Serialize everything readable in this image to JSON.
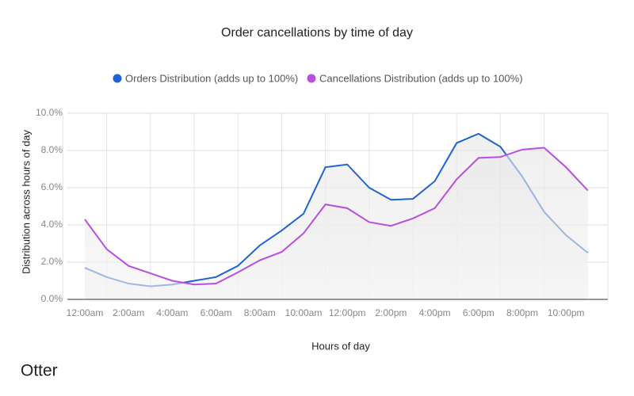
{
  "chart_data": {
    "type": "line",
    "title": "Order cancellations by time of day",
    "x_label": "Hours of day",
    "y_label": "Distribution across hours of day",
    "brand": "Otter",
    "categories": [
      "12:00am",
      null,
      "2:00am",
      null,
      "4:00am",
      null,
      "6:00am",
      null,
      "8:00am",
      null,
      "10:00am",
      null,
      "12:00pm",
      null,
      "2:00pm",
      null,
      "4:00pm",
      null,
      "6:00pm",
      null,
      "8:00pm",
      null,
      "10:00pm",
      null
    ],
    "series": [
      {
        "name": "Orders Distribution (adds up to 100%)",
        "color": "#1f63d1",
        "values": [
          1.7,
          1.2,
          0.85,
          0.7,
          0.8,
          1.0,
          1.2,
          1.8,
          2.9,
          3.7,
          4.6,
          7.1,
          7.25,
          6.0,
          5.35,
          5.4,
          6.35,
          8.4,
          8.9,
          8.2,
          6.6,
          4.7,
          3.45,
          2.5
        ]
      },
      {
        "name": "Cancellations Distribution (adds up to 100%)",
        "color": "#b84fe0",
        "values": [
          4.3,
          2.7,
          1.8,
          1.4,
          1.0,
          0.8,
          0.85,
          1.45,
          2.1,
          2.55,
          3.55,
          5.1,
          4.9,
          4.15,
          3.95,
          4.35,
          4.9,
          6.45,
          7.6,
          7.65,
          8.05,
          8.15,
          7.1,
          5.85
        ]
      }
    ],
    "ylim": [
      0,
      10
    ],
    "yticks": [
      {
        "value": 0,
        "label": "0.0%"
      },
      {
        "value": 2,
        "label": "2.0%"
      },
      {
        "value": 4,
        "label": "4.0%"
      },
      {
        "value": 6,
        "label": "6.0%"
      },
      {
        "value": 8,
        "label": "8.0%"
      },
      {
        "value": 10,
        "label": "10.0%"
      }
    ],
    "grid": true,
    "legend": "top"
  }
}
